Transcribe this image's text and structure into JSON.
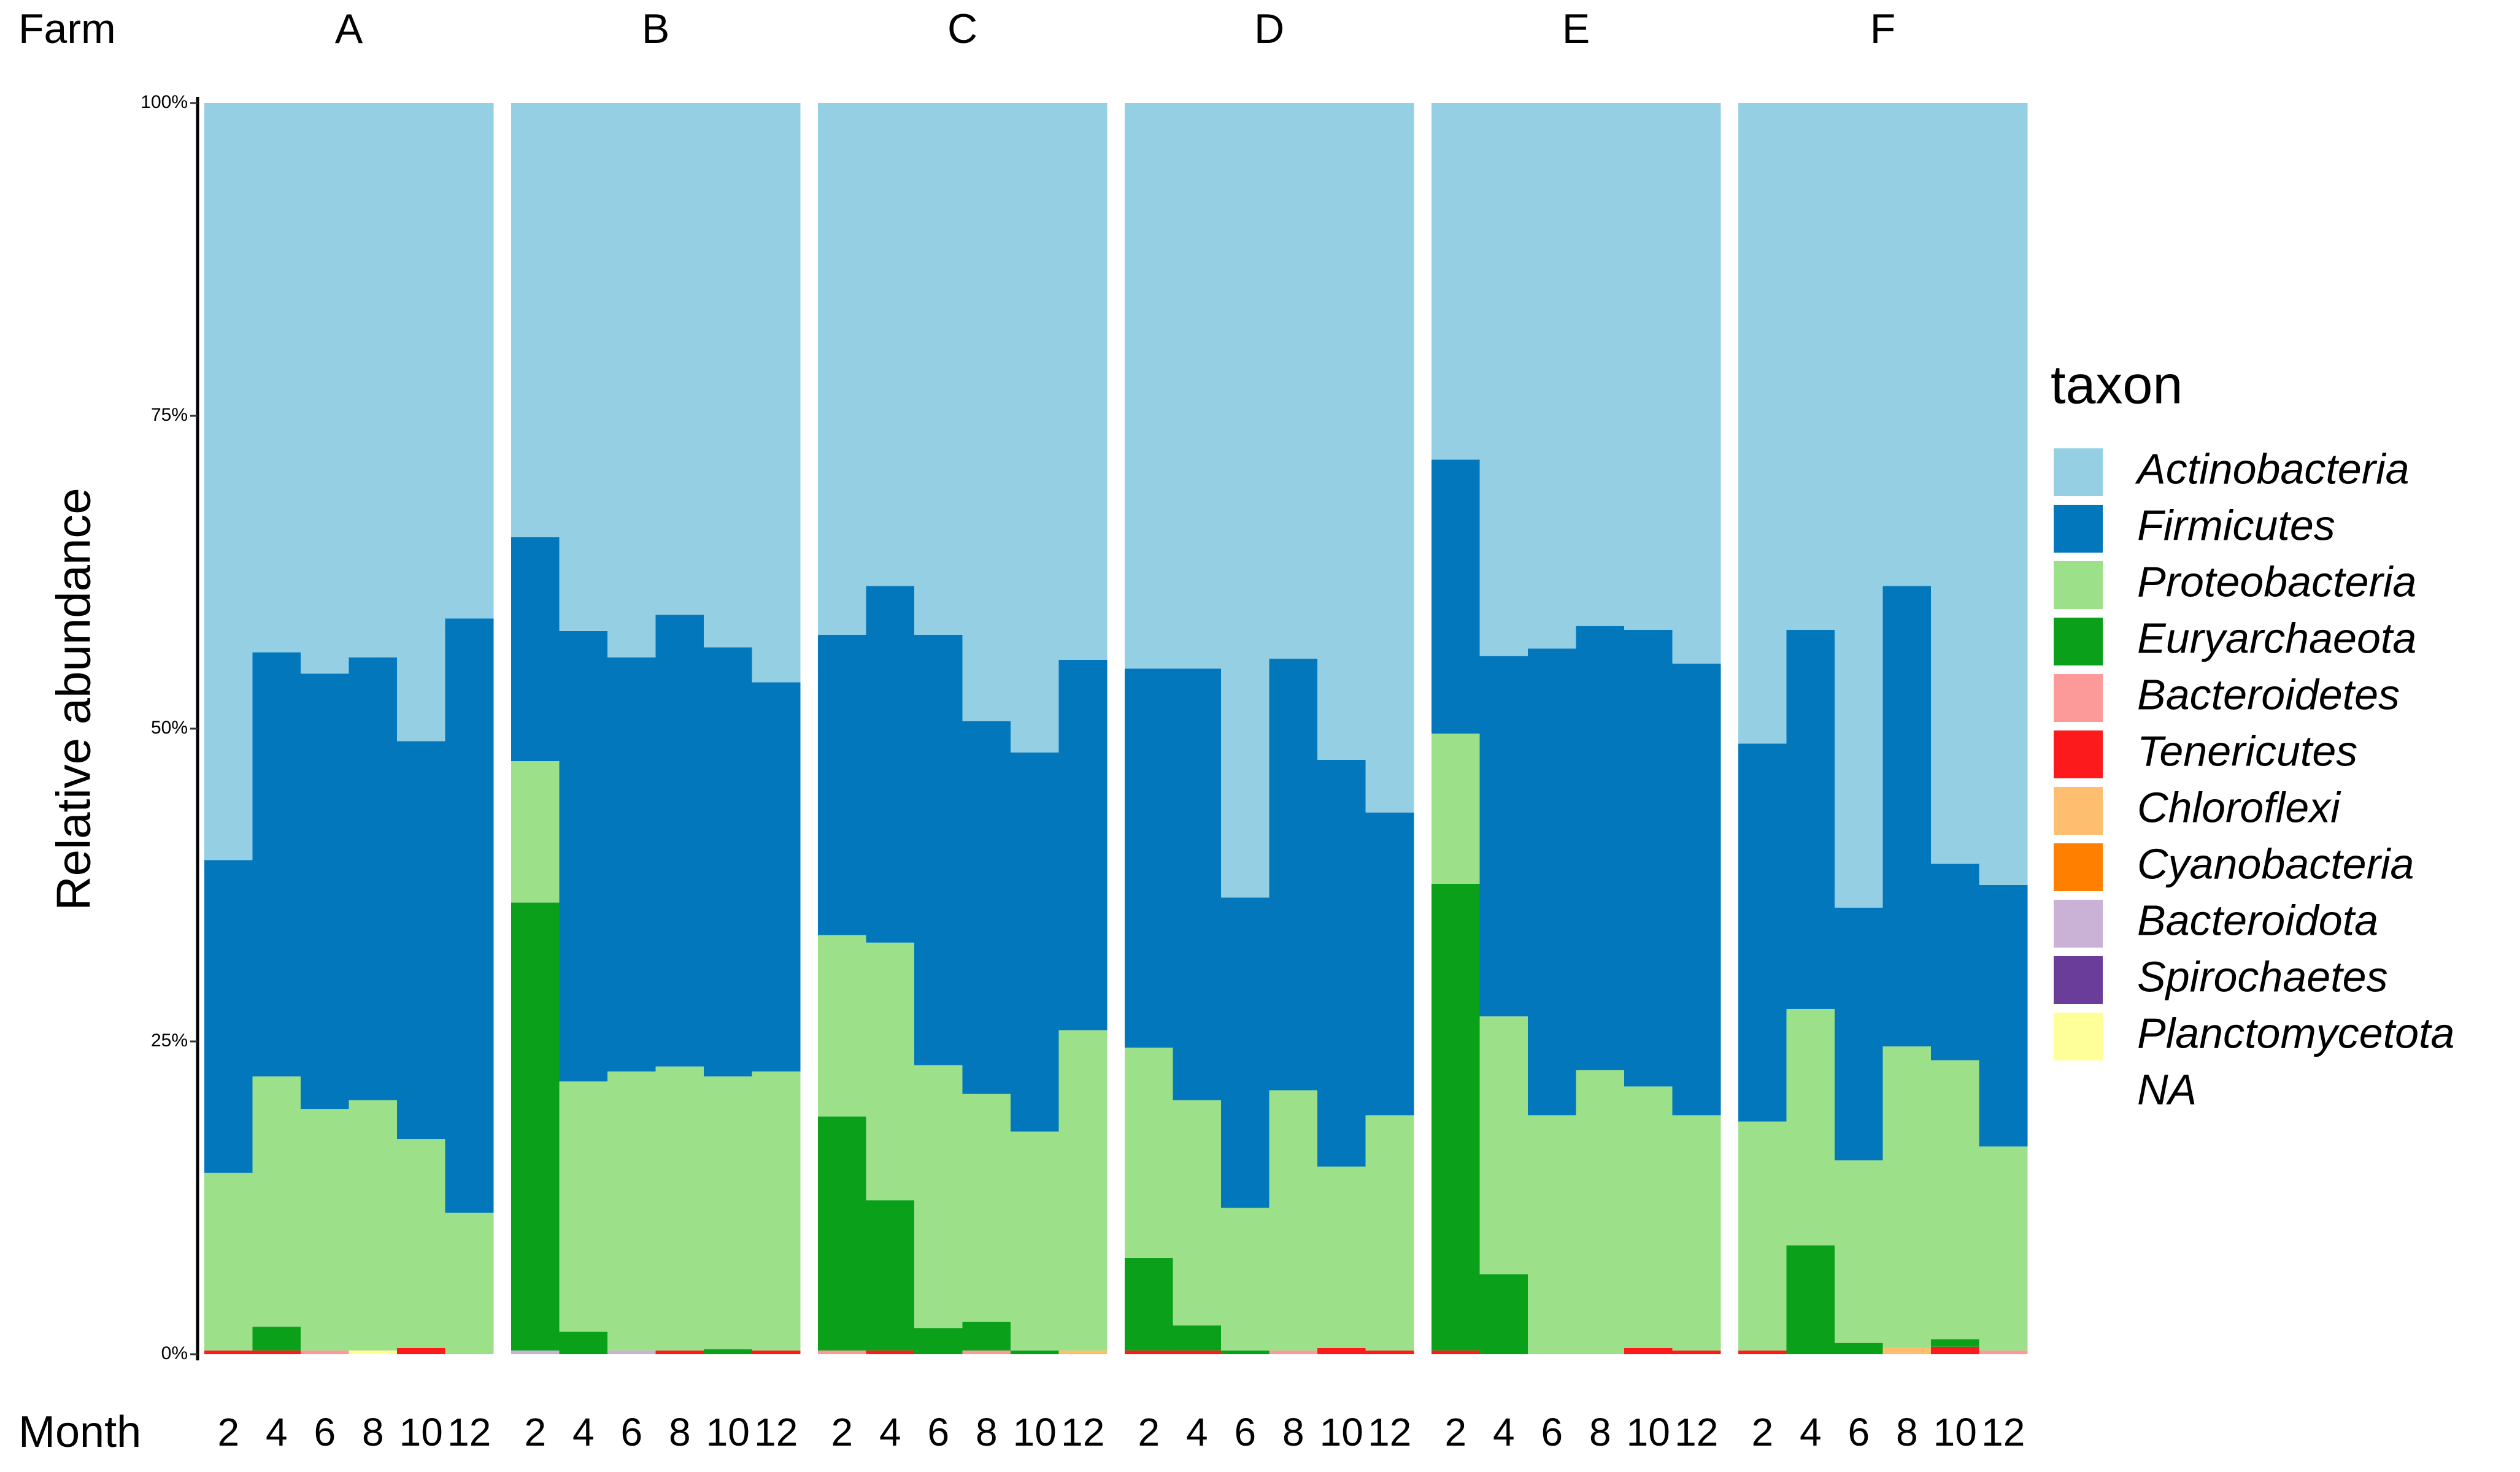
{
  "chart_data": {
    "type": "bar",
    "stacked": true,
    "facet_label": "Farm",
    "facets": [
      "A",
      "B",
      "C",
      "D",
      "E",
      "F"
    ],
    "x_label": "Month",
    "categories": [
      "2",
      "4",
      "6",
      "8",
      "10",
      "12"
    ],
    "y_label": "Relative abundance",
    "ylim": [
      0,
      100
    ],
    "yticks": [
      {
        "value": 0,
        "label": "0%"
      },
      {
        "value": 25,
        "label": "25%"
      },
      {
        "value": 50,
        "label": "50%"
      },
      {
        "value": 75,
        "label": "75%"
      },
      {
        "value": 100,
        "label": "100%"
      }
    ],
    "legend_title": "taxon",
    "series": [
      {
        "name": "NA",
        "values": [
          [
            0,
            0,
            0,
            0,
            0,
            0
          ],
          [
            0,
            0,
            0,
            0,
            0,
            0
          ],
          [
            0,
            0,
            0,
            0,
            0,
            0
          ],
          [
            0,
            0,
            0,
            0,
            0,
            0
          ],
          [
            0,
            0,
            0,
            0,
            0,
            0
          ],
          [
            0,
            0,
            0,
            0,
            0,
            0
          ]
        ]
      },
      {
        "name": "Planctomycetota",
        "color": "#ffff99",
        "values": [
          [
            0,
            0,
            0,
            0.3,
            0,
            0
          ],
          [
            0,
            0,
            0,
            0,
            0,
            0
          ],
          [
            0,
            0,
            0,
            0,
            0,
            0
          ],
          [
            0,
            0,
            0,
            0,
            0,
            0
          ],
          [
            0,
            0,
            0,
            0,
            0,
            0
          ],
          [
            0,
            0,
            0,
            0,
            0,
            0
          ]
        ]
      },
      {
        "name": "Spirochaetes",
        "color": "#6a3d9a",
        "values": [
          [
            0,
            0,
            0,
            0,
            0,
            0
          ],
          [
            0,
            0,
            0,
            0,
            0,
            0
          ],
          [
            0,
            0,
            0,
            0,
            0,
            0
          ],
          [
            0,
            0,
            0,
            0,
            0,
            0
          ],
          [
            0,
            0,
            0,
            0,
            0,
            0
          ],
          [
            0,
            0,
            0,
            0,
            0,
            0
          ]
        ]
      },
      {
        "name": "Bacteroidota",
        "color": "#cab2d6",
        "values": [
          [
            0,
            0,
            0,
            0,
            0,
            0
          ],
          [
            0.3,
            0,
            0.3,
            0,
            0,
            0
          ],
          [
            0,
            0,
            0,
            0,
            0,
            0
          ],
          [
            0,
            0,
            0,
            0,
            0,
            0
          ],
          [
            0,
            0,
            0,
            0,
            0,
            0
          ],
          [
            0,
            0,
            0,
            0,
            0,
            0
          ]
        ]
      },
      {
        "name": "Cyanobacteria",
        "color": "#ff7f00",
        "values": [
          [
            0,
            0,
            0,
            0,
            0,
            0
          ],
          [
            0,
            0,
            0,
            0,
            0,
            0
          ],
          [
            0,
            0,
            0,
            0,
            0,
            0
          ],
          [
            0,
            0,
            0,
            0,
            0,
            0
          ],
          [
            0,
            0,
            0,
            0,
            0,
            0
          ],
          [
            0,
            0,
            0,
            0,
            0,
            0
          ]
        ]
      },
      {
        "name": "Chloroflexi",
        "color": "#fdbf6f",
        "values": [
          [
            0,
            0,
            0,
            0,
            0,
            0
          ],
          [
            0,
            0,
            0,
            0,
            0,
            0
          ],
          [
            0,
            0,
            0,
            0,
            0,
            0.3
          ],
          [
            0,
            0,
            0,
            0,
            0,
            0
          ],
          [
            0,
            0,
            0,
            0,
            0,
            0
          ],
          [
            0,
            0,
            0,
            0.5,
            0,
            0
          ]
        ]
      },
      {
        "name": "Tenericutes",
        "color": "#fc1a1c",
        "values": [
          [
            0.3,
            0.3,
            0,
            0,
            0.5,
            0
          ],
          [
            0,
            0,
            0,
            0.3,
            0,
            0.3
          ],
          [
            0,
            0.3,
            0,
            0,
            0,
            0
          ],
          [
            0.3,
            0.3,
            0,
            0,
            0.5,
            0.3
          ],
          [
            0.3,
            0,
            0,
            0,
            0.5,
            0.3
          ],
          [
            0.3,
            0,
            0,
            0,
            0.6,
            0
          ]
        ]
      },
      {
        "name": "Bacteroidetes",
        "color": "#fb9a99",
        "values": [
          [
            0,
            0,
            0.3,
            0,
            0,
            0
          ],
          [
            0,
            0,
            0,
            0,
            0,
            0
          ],
          [
            0.3,
            0,
            0,
            0.3,
            0,
            0
          ],
          [
            0,
            0,
            0,
            0.3,
            0,
            0
          ],
          [
            0,
            0,
            0,
            0,
            0,
            0
          ],
          [
            0,
            0,
            0,
            0,
            0,
            0.3
          ]
        ]
      },
      {
        "name": "Euryarchaeota",
        "color": "#0aa01a",
        "values": [
          [
            0,
            1.9,
            0,
            0,
            0,
            0
          ],
          [
            35.8,
            1.8,
            0,
            0,
            0.4,
            0
          ],
          [
            18.7,
            12.0,
            2.1,
            2.3,
            0.3,
            0
          ],
          [
            7.4,
            2.0,
            0.3,
            0,
            0,
            0
          ],
          [
            37.3,
            6.4,
            0,
            0,
            0,
            0
          ],
          [
            0,
            8.7,
            0.9,
            0,
            0.6,
            0
          ]
        ]
      },
      {
        "name": "Proteobacteria",
        "color": "#9ce08a",
        "values": [
          [
            14.2,
            20.0,
            19.3,
            20.0,
            16.7,
            11.3
          ],
          [
            11.3,
            20.0,
            22.3,
            22.7,
            21.8,
            22.3
          ],
          [
            14.5,
            20.6,
            21.0,
            18.2,
            17.5,
            25.6
          ],
          [
            16.8,
            18.0,
            11.4,
            20.8,
            14.5,
            18.8
          ],
          [
            12.0,
            20.6,
            19.1,
            22.7,
            20.9,
            18.8
          ],
          [
            18.3,
            18.9,
            14.6,
            24.1,
            22.3,
            16.3
          ]
        ]
      },
      {
        "name": "Firmicutes",
        "color": "#0377bb",
        "values": [
          [
            25.0,
            33.9,
            34.8,
            35.4,
            31.8,
            47.5
          ],
          [
            17.9,
            36.0,
            33.1,
            36.1,
            34.3,
            31.1
          ],
          [
            24.0,
            28.5,
            34.4,
            29.8,
            30.3,
            29.6
          ],
          [
            30.3,
            34.5,
            24.8,
            34.5,
            32.5,
            24.2
          ],
          [
            21.9,
            28.8,
            37.3,
            35.5,
            36.5,
            36.1
          ],
          [
            30.2,
            30.3,
            20.2,
            36.8,
            15.7,
            20.9
          ]
        ]
      },
      {
        "name": "Actinobacteria",
        "color": "#94cfe4",
        "values": [
          [
            60.5,
            43.9,
            45.6,
            44.3,
            51.0,
            41.2
          ],
          [
            34.7,
            42.2,
            44.3,
            40.9,
            43.5,
            46.3
          ],
          [
            42.5,
            38.6,
            42.5,
            49.4,
            51.9,
            44.5
          ],
          [
            45.2,
            45.2,
            63.5,
            44.4,
            52.5,
            56.7
          ],
          [
            28.5,
            44.2,
            43.6,
            41.8,
            42.1,
            44.8
          ],
          [
            51.2,
            42.1,
            64.3,
            38.6,
            60.8,
            62.5
          ]
        ]
      }
    ]
  }
}
